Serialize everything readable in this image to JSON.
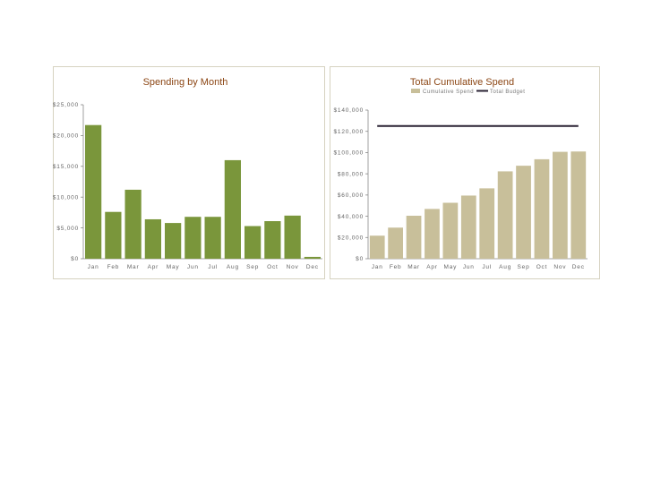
{
  "colors": {
    "bar_green": "#7a963b",
    "bar_tan": "#c8bf9a",
    "budget_line": "#2a2233",
    "title_color": "#8b4513"
  },
  "chart_data": [
    {
      "type": "bar",
      "title": "Spending by Month",
      "categories": [
        "Jan",
        "Feb",
        "Mar",
        "Apr",
        "May",
        "Jun",
        "Jul",
        "Aug",
        "Sep",
        "Oct",
        "Nov",
        "Dec"
      ],
      "values": [
        21700,
        7600,
        11200,
        6400,
        5800,
        6800,
        6800,
        16000,
        5300,
        6100,
        7000,
        300
      ],
      "ylim": [
        0,
        25000
      ],
      "yticks": [
        0,
        5000,
        10000,
        15000,
        20000,
        25000
      ],
      "ytick_labels": [
        "$0",
        "$5,000",
        "$10,000",
        "$15,000",
        "$20,000",
        "$25,000"
      ],
      "xlabel": "",
      "ylabel": "",
      "grid": false
    },
    {
      "type": "bar",
      "title": "Total Cumulative Spend",
      "categories": [
        "Jan",
        "Feb",
        "Mar",
        "Apr",
        "May",
        "Jun",
        "Jul",
        "Aug",
        "Sep",
        "Oct",
        "Nov",
        "Dec"
      ],
      "series": [
        {
          "name": "Cumulative Spend",
          "type": "bar",
          "values": [
            21700,
            29300,
            40500,
            46900,
            52700,
            59500,
            66300,
            82300,
            87600,
            93700,
            100700,
            101000
          ]
        },
        {
          "name": "Total Budget",
          "type": "line",
          "values": [
            125000,
            125000,
            125000,
            125000,
            125000,
            125000,
            125000,
            125000,
            125000,
            125000,
            125000,
            125000
          ]
        }
      ],
      "ylim": [
        0,
        140000
      ],
      "yticks": [
        0,
        20000,
        40000,
        60000,
        80000,
        100000,
        120000,
        140000
      ],
      "ytick_labels": [
        "$0",
        "$20,000",
        "$40,000",
        "$60,000",
        "$80,000",
        "$100,000",
        "$120,000",
        "$140,000"
      ],
      "legend_position": "top",
      "xlabel": "",
      "ylabel": "",
      "grid": false
    }
  ]
}
